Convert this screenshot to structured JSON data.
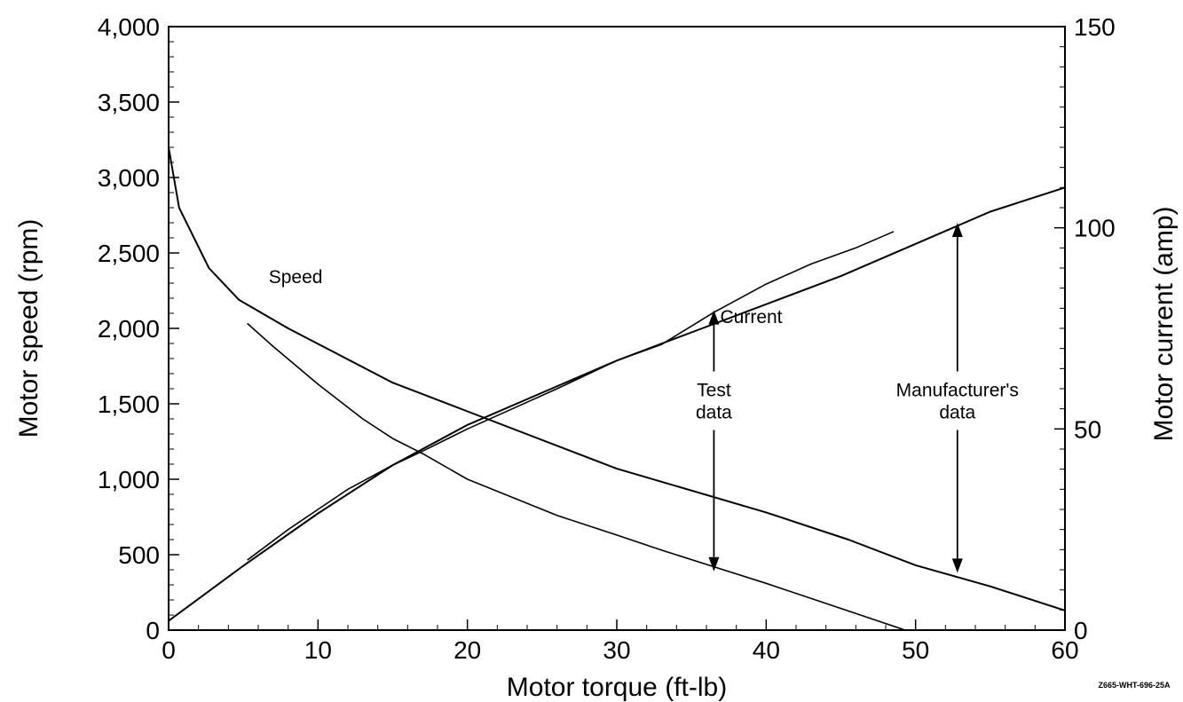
{
  "chart_data": {
    "type": "line",
    "xlabel": "Motor torque (ft-lb)",
    "ylabel": "Motor speed (rpm)",
    "y2label": "Motor current (amp)",
    "xlim": [
      0,
      60
    ],
    "ylim": [
      0,
      4000
    ],
    "y2lim": [
      0,
      150
    ],
    "x_ticks": [
      0,
      10,
      20,
      30,
      40,
      50,
      60
    ],
    "x_tick_labels": [
      "0",
      "10",
      "20",
      "30",
      "40",
      "50",
      "60"
    ],
    "y_ticks": [
      0,
      500,
      1000,
      1500,
      2000,
      2500,
      3000,
      3500,
      4000
    ],
    "y_tick_labels": [
      "0",
      "500",
      "1,000",
      "1,500",
      "2,000",
      "2,500",
      "3,000",
      "3,500",
      "4,000"
    ],
    "y2_ticks": [
      0,
      50,
      100,
      150
    ],
    "y2_tick_labels": [
      "0",
      "50",
      "100",
      "150"
    ],
    "grid": false,
    "series": [
      {
        "name": "Speed",
        "axis": "left",
        "source": "Manufacturer's data",
        "x": [
          0,
          0.7,
          2.7,
          4.7,
          8,
          15,
          20,
          30,
          40,
          45.5,
          50,
          55,
          60
        ],
        "y": [
          3200,
          2800,
          2400,
          2190,
          2000,
          1640,
          1450,
          1070,
          780,
          600,
          430,
          290,
          130
        ]
      },
      {
        "name": "Current",
        "axis": "right",
        "source": "Manufacturer's data",
        "x": [
          0,
          5,
          10,
          15,
          20,
          25,
          30,
          35,
          40,
          45,
          50,
          55,
          60
        ],
        "y": [
          2.3,
          16,
          29,
          41,
          51,
          59,
          67,
          74,
          81,
          88,
          96,
          104,
          110
        ]
      },
      {
        "name": "Speed",
        "axis": "left",
        "source": "Test data",
        "x": [
          5.3,
          7,
          10,
          13,
          15,
          17,
          20,
          23,
          26,
          30,
          33,
          36.5,
          40,
          43,
          46,
          49.3
        ],
        "y": [
          2030,
          1880,
          1630,
          1400,
          1270,
          1170,
          1000,
          880,
          760,
          630,
          530,
          420,
          310,
          210,
          110,
          0
        ]
      },
      {
        "name": "Current",
        "axis": "right",
        "source": "Test data",
        "x": [
          5.3,
          8,
          10,
          12,
          15,
          17,
          20,
          23,
          26,
          30,
          33,
          36.5,
          40,
          43,
          46,
          48.5
        ],
        "y": [
          17.5,
          25,
          30,
          35,
          41,
          44.5,
          50,
          55,
          60,
          67,
          71,
          79,
          86,
          91,
          95,
          99
        ]
      }
    ],
    "annotations": [
      {
        "text": "Speed",
        "x": 8.5,
        "y": 2300,
        "axis": "left"
      },
      {
        "text": "Current",
        "x": 39,
        "y": 2035,
        "axis": "left"
      },
      {
        "lines": [
          "Test",
          "data"
        ],
        "x": 36.5,
        "y": 1550,
        "axis": "left",
        "arrows": [
          {
            "to_x": 36.5,
            "to_y": 2120
          },
          {
            "to_x": 36.5,
            "to_y": 390
          }
        ]
      },
      {
        "lines": [
          "Manufacturer's",
          "data"
        ],
        "x": 52.8,
        "y": 1550,
        "axis": "left",
        "arrows": [
          {
            "to_x": 52.8,
            "to_y": 2700
          },
          {
            "to_x": 52.8,
            "to_y": 380
          }
        ]
      }
    ],
    "figure_id": "Z665-WHT-696-25A"
  }
}
